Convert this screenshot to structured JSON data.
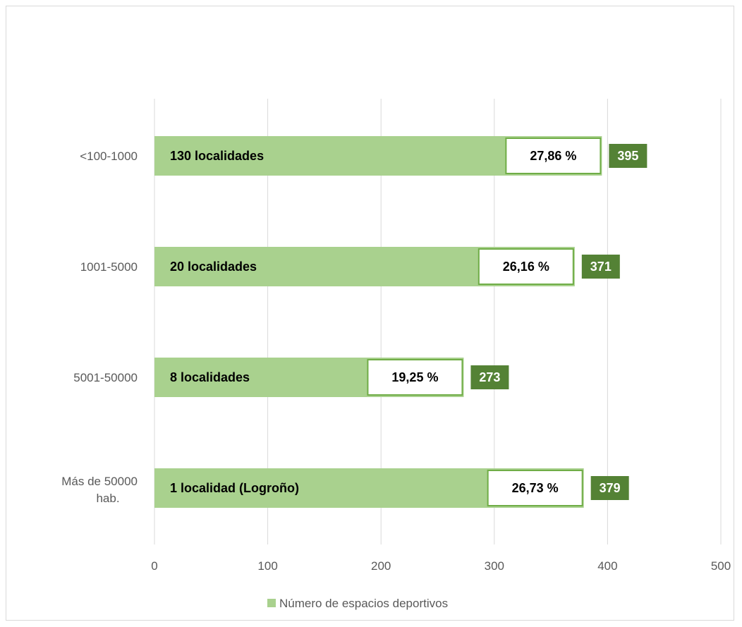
{
  "chart_data": {
    "type": "bar",
    "orientation": "horizontal",
    "categories": [
      "<100-1000",
      "1001-5000",
      "5001-50000",
      "Más de 50000 hab."
    ],
    "category_lines": [
      [
        "<100-1000"
      ],
      [
        "1001-5000"
      ],
      [
        "5001-50000"
      ],
      [
        "Más de 50000",
        "hab."
      ]
    ],
    "values": [
      395,
      371,
      273,
      379
    ],
    "bar_labels": [
      "130 localidades",
      "20 localidades",
      "8 localidades",
      "1 localidad (Logroño)"
    ],
    "percent_labels": [
      "27,86 %",
      "26,16 %",
      "19,25 %",
      "26,73 %"
    ],
    "value_labels": [
      "395",
      "371",
      "273",
      "379"
    ],
    "series": [
      {
        "name": "Número de espacios deportivos",
        "values": [
          395,
          371,
          273,
          379
        ]
      }
    ],
    "x_ticks": [
      "0",
      "100",
      "200",
      "300",
      "400",
      "500"
    ],
    "xlim": [
      0,
      500
    ],
    "grid": "vertical",
    "legend": "bottom",
    "colors": {
      "bar": "#a9d18e",
      "value_box": "#548235",
      "pct_border": "#70ad47",
      "grid": "#d9d9d9",
      "text": "#595959"
    }
  }
}
